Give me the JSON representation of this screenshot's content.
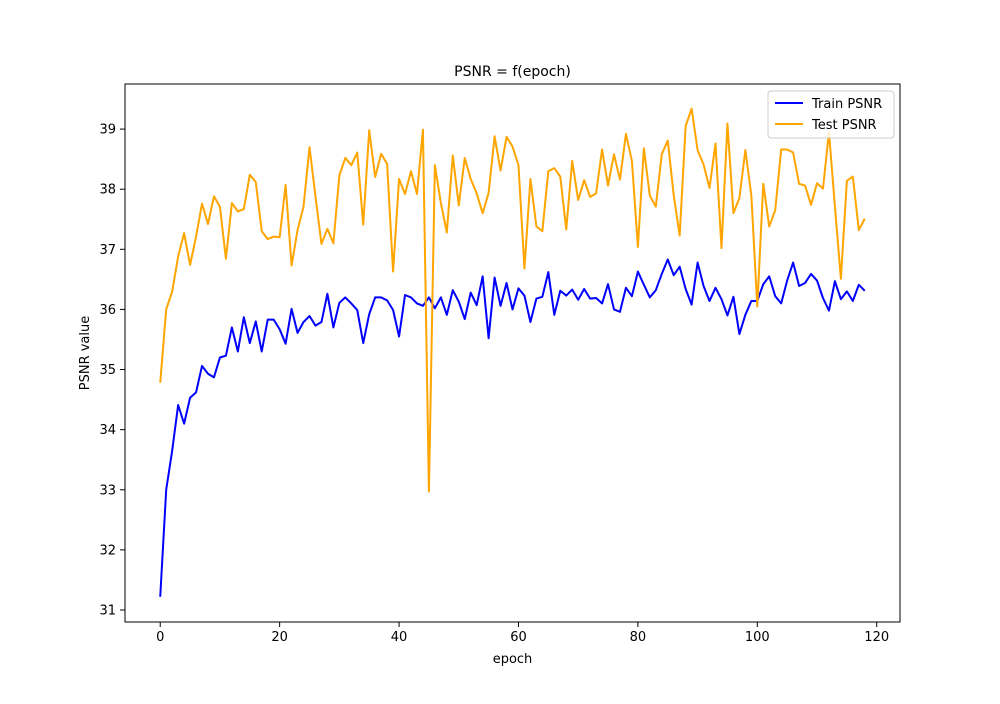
{
  "chart_data": {
    "type": "line",
    "title": "PSNR = f(epoch)",
    "xlabel": "epoch",
    "ylabel": "PSNR value",
    "xlim": [
      -5.9,
      123.9
    ],
    "ylim": [
      30.8,
      39.75
    ],
    "xticks": [
      0,
      20,
      40,
      60,
      80,
      100,
      120
    ],
    "yticks": [
      31,
      32,
      33,
      34,
      35,
      36,
      37,
      38,
      39
    ],
    "grid": false,
    "legend_position": "top-right",
    "x": [
      0,
      1,
      2,
      3,
      4,
      5,
      6,
      7,
      8,
      9,
      10,
      11,
      12,
      13,
      14,
      15,
      16,
      17,
      18,
      19,
      20,
      21,
      22,
      23,
      24,
      25,
      26,
      27,
      28,
      29,
      30,
      31,
      32,
      33,
      34,
      35,
      36,
      37,
      38,
      39,
      40,
      41,
      42,
      43,
      44,
      45,
      46,
      47,
      48,
      49,
      50,
      51,
      52,
      53,
      54,
      55,
      56,
      57,
      58,
      59,
      60,
      61,
      62,
      63,
      64,
      65,
      66,
      67,
      68,
      69,
      70,
      71,
      72,
      73,
      74,
      75,
      76,
      77,
      78,
      79,
      80,
      81,
      82,
      83,
      84,
      85,
      86,
      87,
      88,
      89,
      90,
      91,
      92,
      93,
      94,
      95,
      96,
      97,
      98,
      99,
      100,
      101,
      102,
      103,
      104,
      105,
      106,
      107,
      108,
      109,
      110,
      111,
      112,
      113,
      114,
      115,
      116,
      117,
      118
    ],
    "series": [
      {
        "name": "Train PSNR",
        "color": "#0000ff",
        "values": [
          31.22,
          33.0,
          33.65,
          34.41,
          34.1,
          34.53,
          34.62,
          35.06,
          34.93,
          34.87,
          35.2,
          35.23,
          35.7,
          35.3,
          35.87,
          35.44,
          35.8,
          35.3,
          35.83,
          35.83,
          35.67,
          35.43,
          36.01,
          35.61,
          35.79,
          35.89,
          35.73,
          35.79,
          36.26,
          35.7,
          36.11,
          36.2,
          36.1,
          35.99,
          35.44,
          35.92,
          36.2,
          36.2,
          36.15,
          35.99,
          35.55,
          36.24,
          36.2,
          36.1,
          36.06,
          36.2,
          36.02,
          36.2,
          35.91,
          36.32,
          36.13,
          35.84,
          36.28,
          36.07,
          36.55,
          35.52,
          36.53,
          36.06,
          36.44,
          36.0,
          36.35,
          36.23,
          35.79,
          36.18,
          36.21,
          36.62,
          35.91,
          36.31,
          36.23,
          36.33,
          36.16,
          36.34,
          36.18,
          36.19,
          36.1,
          36.42,
          36.0,
          35.96,
          36.36,
          36.22,
          36.63,
          36.41,
          36.2,
          36.32,
          36.59,
          36.83,
          36.57,
          36.71,
          36.34,
          36.08,
          36.78,
          36.39,
          36.14,
          36.36,
          36.17,
          35.9,
          36.21,
          35.59,
          35.91,
          36.14,
          36.14,
          36.42,
          36.55,
          36.22,
          36.1,
          36.48,
          36.78,
          36.39,
          36.44,
          36.59,
          36.48,
          36.19,
          35.98,
          36.47,
          36.17,
          36.3,
          36.14,
          36.41,
          36.31
        ]
      },
      {
        "name": "Test PSNR",
        "color": "#ffa500",
        "values": [
          34.78,
          36.0,
          36.3,
          36.88,
          37.27,
          36.74,
          37.21,
          37.76,
          37.42,
          37.88,
          37.71,
          36.84,
          37.77,
          37.63,
          37.67,
          38.24,
          38.12,
          37.3,
          37.17,
          37.21,
          37.2,
          38.07,
          36.73,
          37.32,
          37.71,
          38.7,
          37.88,
          37.09,
          37.34,
          37.1,
          38.23,
          38.52,
          38.4,
          38.61,
          37.41,
          38.98,
          38.2,
          38.59,
          38.42,
          36.63,
          38.17,
          37.92,
          38.3,
          37.92,
          38.99,
          32.97,
          38.4,
          37.77,
          37.28,
          38.56,
          37.73,
          38.52,
          38.17,
          37.93,
          37.6,
          37.94,
          38.88,
          38.31,
          38.87,
          38.71,
          38.4,
          36.68,
          38.17,
          37.38,
          37.3,
          38.3,
          38.35,
          38.21,
          37.33,
          38.47,
          37.82,
          38.15,
          37.87,
          37.93,
          38.66,
          38.06,
          38.58,
          38.16,
          38.92,
          38.47,
          37.04,
          38.68,
          37.89,
          37.71,
          38.58,
          38.81,
          37.9,
          37.23,
          39.05,
          39.34,
          38.65,
          38.41,
          38.02,
          38.76,
          37.02,
          39.09,
          37.6,
          37.85,
          38.65,
          37.9,
          36.05,
          38.09,
          37.38,
          37.65,
          38.66,
          38.66,
          38.61,
          38.09,
          38.06,
          37.74,
          38.1,
          38.01,
          38.95,
          37.71,
          36.51,
          38.14,
          38.21,
          37.32,
          37.51
        ]
      }
    ]
  }
}
